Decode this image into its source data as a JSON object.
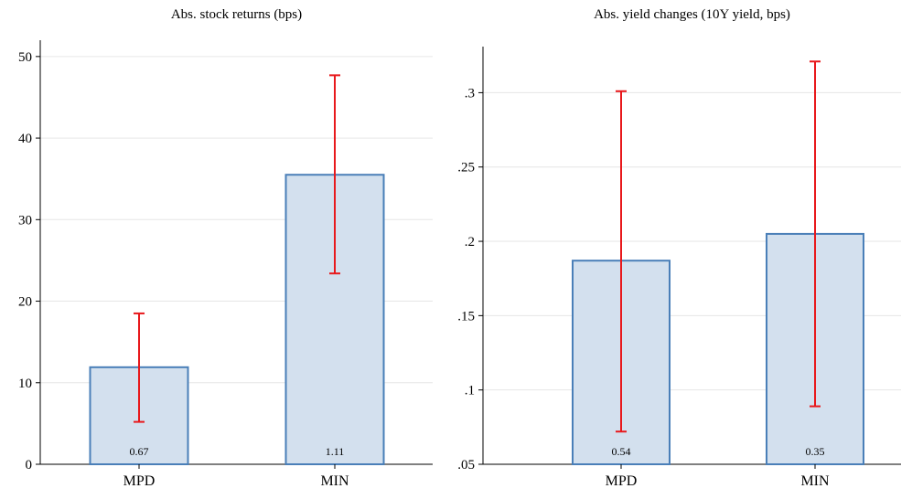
{
  "colors": {
    "bar_fill": "#d3e0ee",
    "bar_stroke": "#4a7fb8",
    "error_bar": "#e8191c",
    "grid": "#e6e6e6",
    "axis": "#000000"
  },
  "chart_data": [
    {
      "type": "bar",
      "title": "Abs. stock returns (bps)",
      "categories": [
        "MPD",
        "MIN"
      ],
      "values": [
        11.9,
        35.5
      ],
      "error_low": [
        5.2,
        23.4
      ],
      "error_high": [
        18.5,
        47.7
      ],
      "bar_labels": [
        "0.67",
        "1.11"
      ],
      "ylim": [
        0,
        52
      ],
      "yticks": [
        0,
        10,
        20,
        30,
        40,
        50
      ],
      "ytick_labels": [
        "0",
        "10",
        "20",
        "30",
        "40",
        "50"
      ],
      "grid": true,
      "legend": "none"
    },
    {
      "type": "bar",
      "title": "Abs. yield changes (10Y yield, bps)",
      "categories": [
        "MPD",
        "MIN"
      ],
      "values": [
        0.187,
        0.205
      ],
      "error_low": [
        0.072,
        0.089
      ],
      "error_high": [
        0.301,
        0.321
      ],
      "bar_labels": [
        "0.54",
        "0.35"
      ],
      "ylim": [
        0.05,
        0.331
      ],
      "yticks": [
        0.05,
        0.1,
        0.15,
        0.2,
        0.25,
        0.3
      ],
      "ytick_labels": [
        ".05",
        ".1",
        ".15",
        ".2",
        ".25",
        ".3"
      ],
      "grid": true,
      "legend": "none"
    }
  ]
}
